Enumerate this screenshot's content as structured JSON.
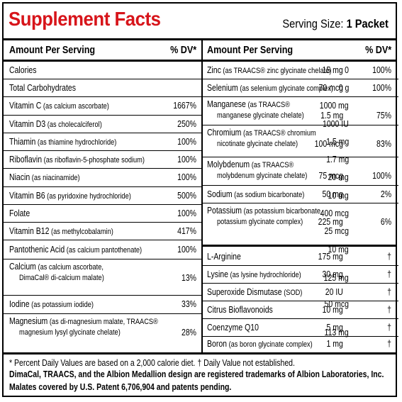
{
  "title": "Supplement Facts",
  "serving": {
    "label": "Serving Size:",
    "value": "1 Packet"
  },
  "headers": {
    "amount": "Amount Per Serving",
    "dv": "% DV*"
  },
  "left_rows": [
    {
      "name": "Calories",
      "source": "",
      "amount": "0",
      "dv": ""
    },
    {
      "name": "Total Carbohydrates",
      "source": "",
      "amount": "0 g",
      "dv": ""
    },
    {
      "name": "Vitamin C",
      "source": "(as calcium ascorbate)",
      "amount": "1000 mg",
      "dv": "1667%"
    },
    {
      "name": "Vitamin D3",
      "source": "(as cholecalciferol)",
      "amount": "1000 IU",
      "dv": "250%"
    },
    {
      "name": "Thiamin",
      "source": "(as thiamine hydrochloride)",
      "amount": "1.5 mg",
      "dv": "100%"
    },
    {
      "name": "Riboflavin",
      "source": "(as riboflavin-5-phosphate sodium)",
      "amount": "1.7 mg",
      "dv": "100%"
    },
    {
      "name": "Niacin",
      "source": "(as niacinamide)",
      "amount": "20 mg",
      "dv": "100%"
    },
    {
      "name": "Vitamin B6",
      "source": "(as pyridoxine hydrochloride)",
      "amount": "10 mg",
      "dv": "500%"
    },
    {
      "name": "Folate",
      "source": "",
      "amount": "400 mcg",
      "dv": "100%"
    },
    {
      "name": "Vitamin B12",
      "source": "(as methylcobalamin)",
      "amount": "25 mcg",
      "dv": "417%"
    },
    {
      "name": "Pantothenic Acid",
      "source": "(as calcium pantothenate)",
      "amount": "10 mg",
      "dv": "100%"
    },
    {
      "name": "Calcium",
      "source": "(as calcium ascorbate,",
      "source2": "DimaCal® di-calcium malate)",
      "amount": "125 mg",
      "dv": "13%"
    },
    {
      "name": "Iodine",
      "source": "(as potassium iodide)",
      "amount": "50 mcg",
      "dv": "33%"
    },
    {
      "name": "Magnesium",
      "source": "(as di-magnesium malate, TRAACS®",
      "source2": "magnesium lysyl glycinate chelate)",
      "amount": "113 mg",
      "dv": "28%"
    }
  ],
  "right_rows": [
    {
      "name": "Zinc",
      "source": "(as TRAACS® zinc glycinate chelate)",
      "amount": "15 mg",
      "dv": "100%"
    },
    {
      "name": "Selenium",
      "source": "(as selenium glycinate complex)",
      "amount": "70 mcg",
      "dv": "100%"
    },
    {
      "name": "Manganese",
      "source": "(as TRAACS®",
      "source2": "manganese glycinate chelate)",
      "amount": "1.5 mg",
      "dv": "75%"
    },
    {
      "name": "Chromium",
      "source": "(as TRAACS® chromium",
      "source2": "nicotinate glycinate chelate)",
      "amount": "100 mcg",
      "dv": "83%"
    },
    {
      "name": "Molybdenum",
      "source": "(as TRAACS®",
      "source2": "molybdenum glycinate chelate)",
      "amount": "75 mcg",
      "dv": "100%"
    },
    {
      "name": "Sodium",
      "source": "(as sodium bicarbonate)",
      "amount": "50 mg",
      "dv": "2%"
    },
    {
      "name": "Potassium",
      "source": "(as potassium bicarbonate,",
      "source2": "potassium glycinate complex)",
      "amount": "225 mg",
      "dv": "6%"
    }
  ],
  "other_rows": [
    {
      "name": "L-Arginine",
      "source": "",
      "amount": "175 mg",
      "dv": "†"
    },
    {
      "name": "Lysine",
      "source": "(as lysine hydrochloride)",
      "amount": "30 mg",
      "dv": "†"
    },
    {
      "name": "Superoxide Dismutase",
      "source": "(SOD)",
      "amount": "20 IU",
      "dv": "†"
    },
    {
      "name": "Citrus Bioflavonoids",
      "source": "",
      "amount": "10 mg",
      "dv": "†"
    },
    {
      "name": "Coenzyme Q10",
      "source": "",
      "amount": "5 mg",
      "dv": "†"
    },
    {
      "name": "Boron",
      "source": "(as boron glycinate complex)",
      "amount": "1 mg",
      "dv": "†"
    }
  ],
  "footnotes": {
    "dv_note": "* Percent Daily Values are based on a 2,000 calorie diet.  † Daily Value not established.",
    "trademark": "DimaCal, TRAACS, and the Albion Medallion design are registered trademarks of Albion Laboratories, Inc.",
    "patent": "Malates covered by U.S. Patent 6,706,904 and patents pending."
  },
  "colors": {
    "title": "#d7141a",
    "text": "#000000",
    "background": "#ffffff"
  }
}
